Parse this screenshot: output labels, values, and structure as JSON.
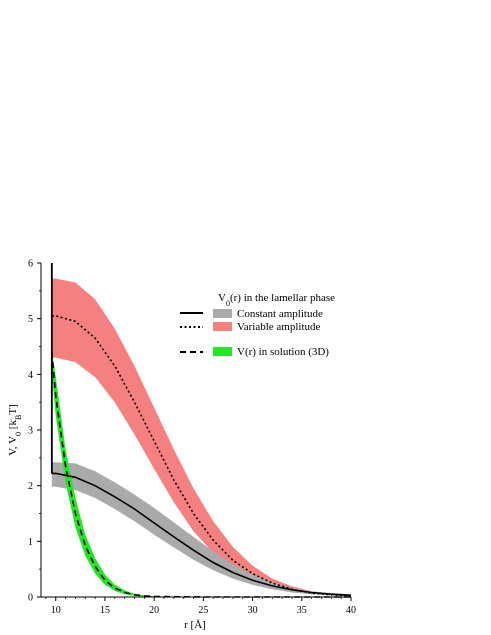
{
  "chart_data": {
    "type": "line",
    "xlabel_base": "r [",
    "xlabel_unit": "Å",
    "xlabel_end": "]",
    "ylabel_base": "V, V",
    "ylabel_sub0": "0",
    "ylabel_mid": " [k",
    "ylabel_subB": "B",
    "ylabel_end": "T]",
    "xlim": [
      8.5,
      40
    ],
    "ylim": [
      0,
      6
    ],
    "xticks": [
      10,
      15,
      20,
      25,
      30,
      35,
      40
    ],
    "yticks": [
      0,
      1,
      2,
      3,
      4,
      5,
      6
    ],
    "grid": false,
    "legend_position": "top-right",
    "legend": {
      "title_base": "V",
      "title_sub": "0",
      "title_rest": "(r) in the lamellar phase",
      "items": [
        {
          "label": "Constant amplitude",
          "line_style": "solid",
          "band_color": "#aaaaaa"
        },
        {
          "label": "Variable amplitude",
          "line_style": "dotted",
          "band_color": "#f58080"
        },
        {
          "label": "V(r) in solution (3D)",
          "line_style": "dashed",
          "band_color": "#22e822"
        }
      ]
    },
    "series": [
      {
        "name": "Constant amplitude",
        "line_style": "solid",
        "color": "#000000",
        "band_color": "#aaaaaa",
        "x": [
          9.6,
          10,
          12,
          14,
          16,
          18,
          20,
          22,
          24,
          26,
          28,
          30,
          32,
          34,
          36,
          38,
          40
        ],
        "y": [
          2.22,
          2.22,
          2.15,
          2.0,
          1.8,
          1.58,
          1.33,
          1.08,
          0.84,
          0.62,
          0.44,
          0.3,
          0.2,
          0.13,
          0.08,
          0.05,
          0.03
        ],
        "lower": [
          1.98,
          1.98,
          1.92,
          1.78,
          1.58,
          1.36,
          1.12,
          0.89,
          0.67,
          0.48,
          0.33,
          0.22,
          0.14,
          0.08,
          0.05,
          0.03,
          0.02
        ],
        "upper": [
          2.42,
          2.42,
          2.4,
          2.26,
          2.06,
          1.84,
          1.6,
          1.34,
          1.08,
          0.82,
          0.59,
          0.4,
          0.26,
          0.16,
          0.1,
          0.07,
          0.05
        ]
      },
      {
        "name": "Variable amplitude",
        "line_style": "dotted",
        "color": "#000000",
        "band_color": "#f58080",
        "x": [
          9.6,
          10,
          12,
          14,
          16,
          18,
          20,
          22,
          24,
          26,
          28,
          30,
          32,
          34,
          36,
          38,
          40
        ],
        "y": [
          5.05,
          5.05,
          4.95,
          4.65,
          4.15,
          3.5,
          2.8,
          2.1,
          1.5,
          1.02,
          0.66,
          0.42,
          0.25,
          0.14,
          0.07,
          0.04,
          0.02
        ],
        "lower": [
          4.3,
          4.3,
          4.22,
          3.95,
          3.5,
          2.92,
          2.3,
          1.7,
          1.18,
          0.79,
          0.5,
          0.31,
          0.18,
          0.1,
          0.05,
          0.03,
          0.01
        ],
        "upper": [
          5.72,
          5.72,
          5.65,
          5.35,
          4.82,
          4.15,
          3.4,
          2.65,
          1.95,
          1.36,
          0.9,
          0.56,
          0.33,
          0.19,
          0.1,
          0.06,
          0.04
        ]
      },
      {
        "name": "V(r) in solution (3D)",
        "line_style": "dashed",
        "color": "#000000",
        "band_color": "#22e822",
        "x": [
          9.6,
          10,
          11,
          12,
          13,
          14,
          15,
          16,
          17,
          18,
          19,
          20,
          22,
          25,
          30,
          35,
          40
        ],
        "y": [
          4.4,
          3.6,
          2.35,
          1.5,
          0.92,
          0.55,
          0.3,
          0.16,
          0.08,
          0.04,
          0.02,
          0.01,
          0.005,
          0.0,
          0.0,
          0.0,
          0.0
        ],
        "lower": [
          4.0,
          3.25,
          2.05,
          1.25,
          0.74,
          0.42,
          0.22,
          0.11,
          0.05,
          0.02,
          0.01,
          0.005,
          0.0,
          0.0,
          0.0,
          0.0,
          0.0
        ],
        "upper": [
          4.45,
          3.95,
          2.65,
          1.78,
          1.12,
          0.7,
          0.4,
          0.22,
          0.12,
          0.06,
          0.03,
          0.015,
          0.008,
          0.0,
          0.0,
          0.0,
          0.0
        ]
      }
    ],
    "wall_line": {
      "x": 9.6,
      "y_top": 6,
      "y_bottom": 2.22
    }
  }
}
